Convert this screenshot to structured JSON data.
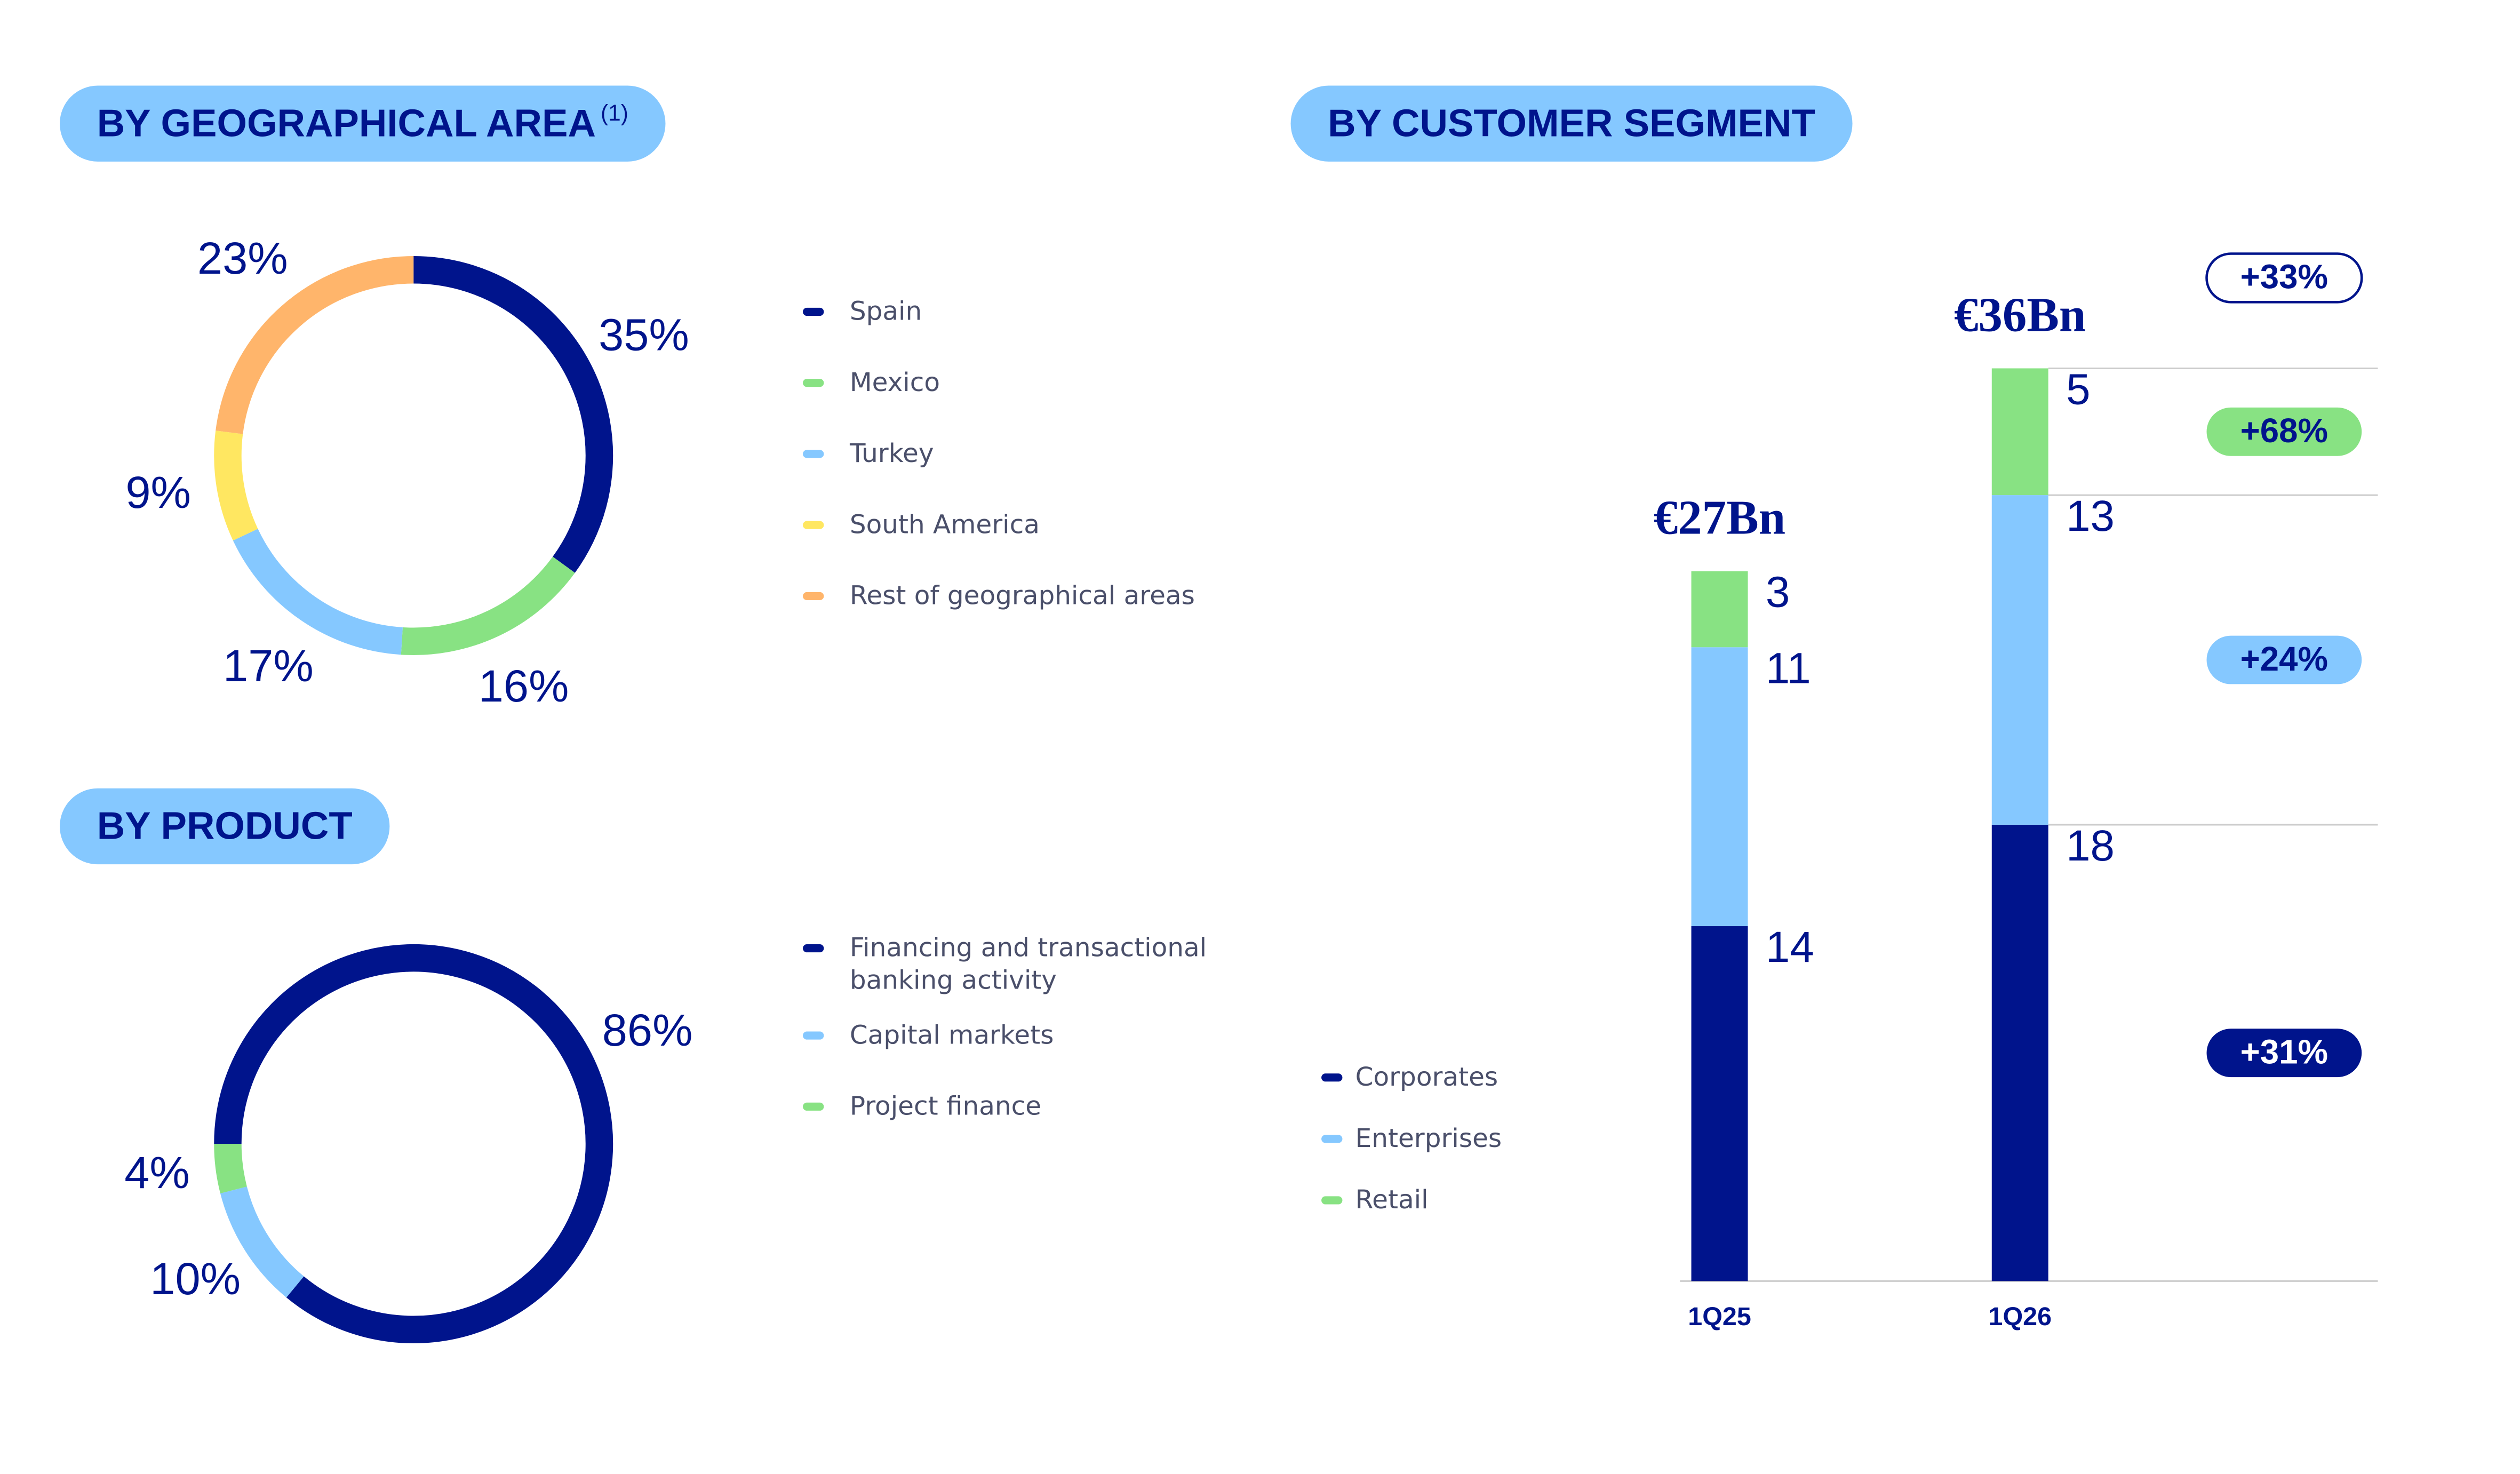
{
  "chart_data": [
    {
      "type": "pie",
      "title": "BY GEOGRAPHICAL AREA",
      "title_note": "(1)",
      "categories": [
        "Spain",
        "Mexico",
        "Turkey",
        "South America",
        "Rest of geographical areas"
      ],
      "values": [
        35,
        16,
        17,
        9,
        23
      ],
      "value_labels": [
        "35%",
        "16%",
        "17%",
        "9%",
        "23%"
      ],
      "colors": [
        "#00148c",
        "#88e283",
        "#85c8ff",
        "#ffe761",
        "#ffb56b"
      ],
      "start_angle": 0
    },
    {
      "type": "pie",
      "title": "BY PRODUCT",
      "categories": [
        "Financing and transactional banking activity",
        "Capital markets",
        "Project finance"
      ],
      "values": [
        86,
        10,
        4
      ],
      "value_labels": [
        "86%",
        "10%",
        "4%"
      ],
      "colors": [
        "#00148c",
        "#85c8ff",
        "#88e283"
      ],
      "start_angle": 270
    },
    {
      "type": "bar",
      "title": "BY CUSTOMER SEGMENT",
      "stacked": true,
      "categories": [
        "1Q25",
        "1Q26"
      ],
      "series": [
        {
          "name": "Corporates",
          "color": "#00148c",
          "values": [
            14,
            18
          ],
          "growth": "+31%"
        },
        {
          "name": "Enterprises",
          "color": "#85c8ff",
          "values": [
            11,
            13
          ],
          "growth": "+24%"
        },
        {
          "name": "Retail",
          "color": "#88e283",
          "values": [
            3,
            5
          ],
          "growth": "+68%"
        }
      ],
      "totals": {
        "values": [
          27,
          36
        ],
        "value_labels": [
          "€27Bn",
          "€36Bn"
        ],
        "growth": "+33%"
      },
      "ylim": [
        0,
        36
      ]
    }
  ]
}
